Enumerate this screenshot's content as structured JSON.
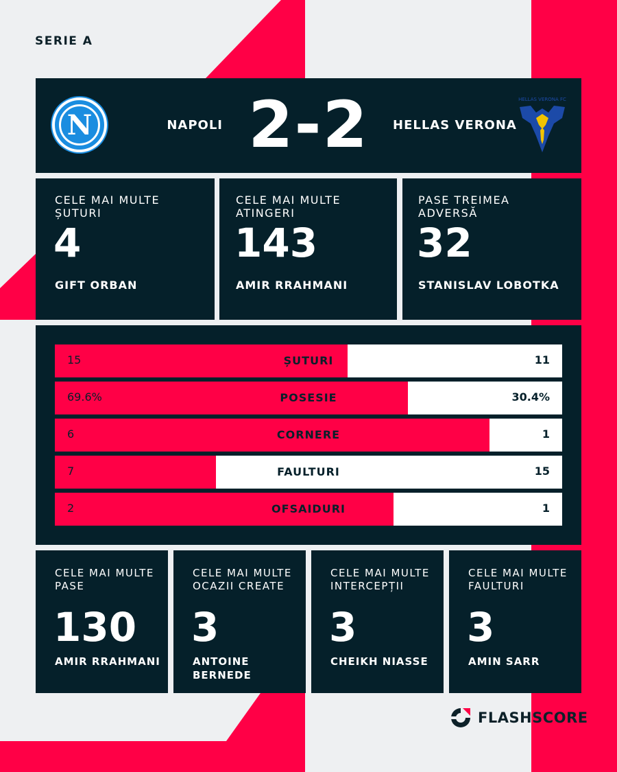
{
  "league": "SERIE A",
  "colors": {
    "accent": "#ff0046",
    "panel": "#05202a",
    "background": "#eef0f2"
  },
  "match": {
    "home_team": "NAPOLI",
    "away_team": "HELLAS VERONA",
    "score": "2-2",
    "home_logo": "napoli-crest-icon",
    "away_logo": "hellas-verona-crest-icon",
    "away_logo_text": "HELLAS VERONA FC"
  },
  "top_cards": [
    {
      "label": "CELE MAI MULTE ȘUTURI",
      "value": "4",
      "player": "GIFT ORBAN"
    },
    {
      "label": "CELE MAI MULTE ATINGERI",
      "value": "143",
      "player": "AMIR RRAHMANI"
    },
    {
      "label": "PASE TREIMEA ADVERSĂ",
      "value": "32",
      "player": "STANISLAV LOBOTKA"
    }
  ],
  "stats": [
    {
      "name": "ȘUTURI",
      "home": "15",
      "away": "11",
      "home_share": 0.577
    },
    {
      "name": "POSESIE",
      "home": "69.6%",
      "away": "30.4%",
      "home_share": 0.696
    },
    {
      "name": "CORNERE",
      "home": "6",
      "away": "1",
      "home_share": 0.857
    },
    {
      "name": "FAULTURI",
      "home": "7",
      "away": "15",
      "home_share": 0.318
    },
    {
      "name": "OFSAIDURI",
      "home": "2",
      "away": "1",
      "home_share": 0.667
    }
  ],
  "bottom_cards": [
    {
      "label": "CELE MAI MULTE PASE",
      "value": "130",
      "player": "AMIR RRAHMANI"
    },
    {
      "label": "CELE MAI MULTE OCAZII CREATE",
      "value": "3",
      "player": "ANTOINE BERNEDE"
    },
    {
      "label": "CELE MAI MULTE INTERCEPȚII",
      "value": "3",
      "player": "CHEIKH NIASSE"
    },
    {
      "label": "CELE MAI MULTE FAULTURI",
      "value": "3",
      "player": "AMIN SARR"
    }
  ],
  "brand": {
    "name": "FLASHSCORE",
    "icon": "flashscore-logo-icon"
  }
}
